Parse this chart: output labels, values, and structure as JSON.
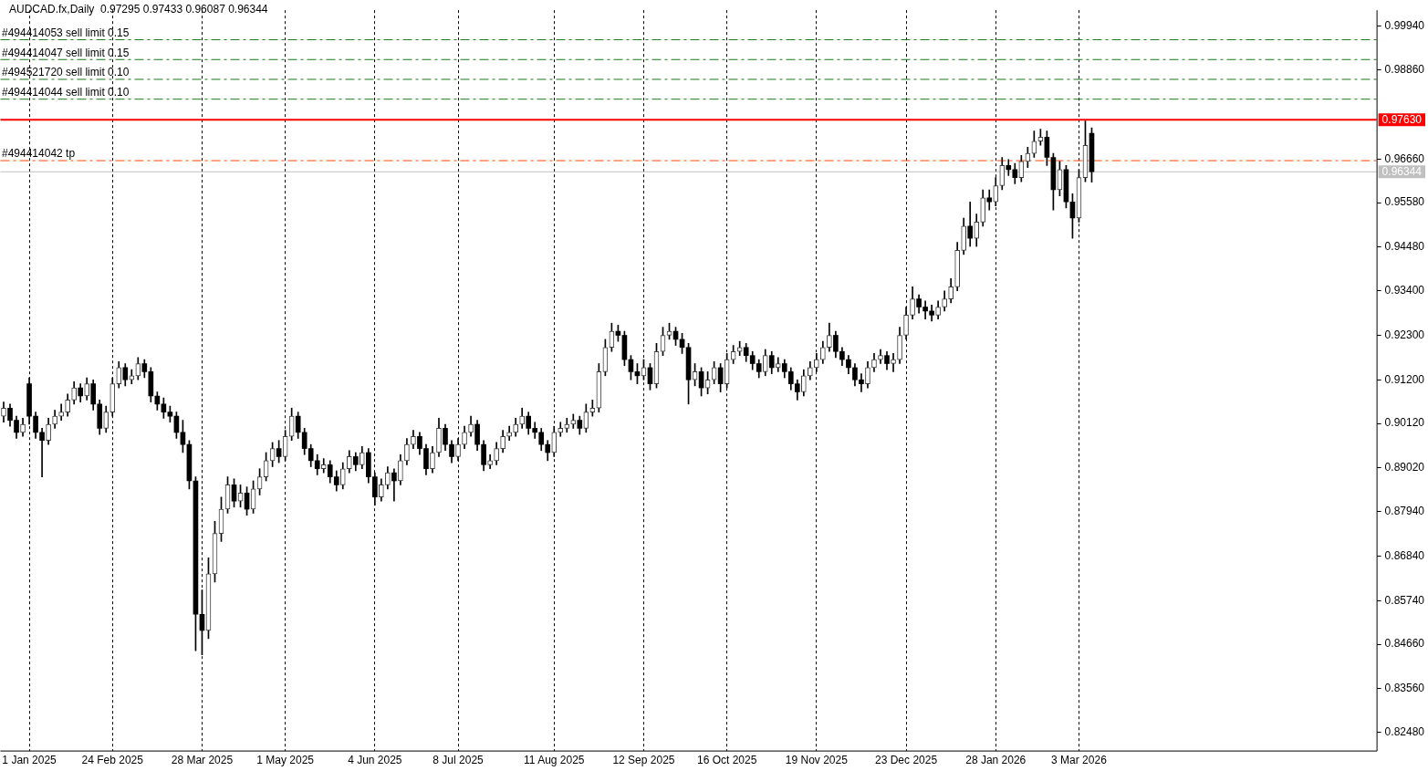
{
  "chart_data": {
    "type": "candlestick",
    "title": "AUDCAD.fx,Daily  0.97295 0.97433 0.96087 0.96344",
    "categories": [
      null,
      null,
      null,
      null,
      "1 Jan 2025",
      null,
      null,
      null,
      null,
      null,
      null,
      null,
      null,
      null,
      null,
      null,
      null,
      "24 Feb 2025",
      null,
      null,
      null,
      null,
      null,
      null,
      null,
      null,
      null,
      null,
      null,
      null,
      null,
      "28 Mar 2025",
      null,
      null,
      null,
      null,
      null,
      null,
      null,
      null,
      null,
      null,
      null,
      null,
      "1 May 2025",
      null,
      null,
      null,
      null,
      null,
      null,
      null,
      null,
      null,
      null,
      null,
      null,
      null,
      "4 Jun 2025",
      null,
      null,
      null,
      null,
      null,
      null,
      null,
      null,
      null,
      null,
      null,
      null,
      "8 Jul 2025",
      null,
      null,
      null,
      null,
      null,
      null,
      null,
      null,
      null,
      null,
      null,
      null,
      null,
      null,
      "11 Aug 2025",
      null,
      null,
      null,
      null,
      null,
      null,
      null,
      null,
      null,
      null,
      null,
      null,
      null,
      "12 Sep 2025",
      null,
      null,
      null,
      null,
      null,
      null,
      null,
      null,
      null,
      null,
      null,
      null,
      "16 Oct 2025",
      null,
      null,
      null,
      null,
      null,
      null,
      null,
      null,
      null,
      null,
      null,
      null,
      null,
      "19 Nov 2025",
      null,
      null,
      null,
      null,
      null,
      null,
      null,
      null,
      null,
      null,
      null,
      null,
      null,
      "23 Dec 2025",
      null,
      null,
      null,
      null,
      null,
      null,
      null,
      null,
      null,
      null,
      null,
      null,
      null,
      "28 Jan 2026",
      null,
      null,
      null,
      null,
      null,
      null,
      null,
      null,
      null,
      null,
      null,
      null,
      "3 Mar 2026",
      null,
      null,
      null,
      null,
      null,
      null,
      null,
      null,
      null,
      null,
      null,
      null,
      null,
      null,
      null,
      null,
      null,
      null,
      null,
      null,
      null,
      null,
      null,
      null,
      null,
      null,
      null,
      null,
      null,
      null,
      null,
      null,
      null,
      null,
      null,
      null,
      null,
      null,
      null,
      null,
      null,
      null,
      null,
      null,
      null,
      null
    ],
    "ohlc": [
      [
        0.903,
        0.9065,
        0.9015,
        0.905
      ],
      [
        0.905,
        0.906,
        0.9005,
        0.902
      ],
      [
        0.902,
        0.903,
        0.8975,
        0.899
      ],
      [
        0.899,
        0.9025,
        0.898,
        0.901
      ],
      [
        0.911,
        0.9125,
        0.901,
        0.903
      ],
      [
        0.903,
        0.904,
        0.8975,
        0.899
      ],
      [
        0.899,
        0.9,
        0.888,
        0.897
      ],
      [
        0.897,
        0.9025,
        0.896,
        0.901
      ],
      [
        0.901,
        0.9045,
        0.9,
        0.903
      ],
      [
        0.903,
        0.906,
        0.902,
        0.904
      ],
      [
        0.904,
        0.9085,
        0.903,
        0.907
      ],
      [
        0.907,
        0.9115,
        0.906,
        0.91
      ],
      [
        0.91,
        0.911,
        0.9065,
        0.908
      ],
      [
        0.908,
        0.9125,
        0.907,
        0.911
      ],
      [
        0.911,
        0.912,
        0.9045,
        0.906
      ],
      [
        0.906,
        0.907,
        0.8985,
        0.9
      ],
      [
        0.9,
        0.9055,
        0.899,
        0.904
      ],
      [
        0.904,
        0.9125,
        0.903,
        0.911
      ],
      [
        0.911,
        0.9165,
        0.91,
        0.915
      ],
      [
        0.915,
        0.916,
        0.9105,
        0.912
      ],
      [
        0.912,
        0.9145,
        0.911,
        0.913
      ],
      [
        0.913,
        0.9175,
        0.912,
        0.916
      ],
      [
        0.916,
        0.917,
        0.9125,
        0.914
      ],
      [
        0.914,
        0.915,
        0.9065,
        0.908
      ],
      [
        0.908,
        0.909,
        0.9045,
        0.906
      ],
      [
        0.906,
        0.9075,
        0.9025,
        0.904
      ],
      [
        0.904,
        0.9055,
        0.9015,
        0.903
      ],
      [
        0.903,
        0.904,
        0.8975,
        0.899
      ],
      [
        0.899,
        0.902,
        0.894,
        0.896
      ],
      [
        0.896,
        0.897,
        0.885,
        0.887
      ],
      [
        0.887,
        0.888,
        0.845,
        0.854
      ],
      [
        0.854,
        0.86,
        0.844,
        0.85
      ],
      [
        0.85,
        0.868,
        0.848,
        0.864
      ],
      [
        0.864,
        0.877,
        0.862,
        0.874
      ],
      [
        0.874,
        0.883,
        0.872,
        0.88
      ],
      [
        0.88,
        0.888,
        0.879,
        0.886
      ],
      [
        0.886,
        0.8875,
        0.8805,
        0.882
      ],
      [
        0.882,
        0.886,
        0.8805,
        0.884
      ],
      [
        0.884,
        0.8855,
        0.8785,
        0.88
      ],
      [
        0.88,
        0.887,
        0.879,
        0.885
      ],
      [
        0.885,
        0.89,
        0.8835,
        0.888
      ],
      [
        0.888,
        0.894,
        0.887,
        0.892
      ],
      [
        0.892,
        0.8965,
        0.8905,
        0.895
      ],
      [
        0.895,
        0.897,
        0.8915,
        0.893
      ],
      [
        0.893,
        0.8995,
        0.892,
        0.898
      ],
      [
        0.898,
        0.905,
        0.897,
        0.903
      ],
      [
        0.903,
        0.904,
        0.8975,
        0.899
      ],
      [
        0.899,
        0.9,
        0.8935,
        0.895
      ],
      [
        0.895,
        0.896,
        0.8905,
        0.892
      ],
      [
        0.892,
        0.8935,
        0.8885,
        0.89
      ],
      [
        0.89,
        0.8925,
        0.889,
        0.891
      ],
      [
        0.891,
        0.892,
        0.8865,
        0.888
      ],
      [
        0.888,
        0.8895,
        0.8845,
        0.886
      ],
      [
        0.886,
        0.8915,
        0.885,
        0.89
      ],
      [
        0.89,
        0.8945,
        0.889,
        0.893
      ],
      [
        0.893,
        0.894,
        0.8895,
        0.891
      ],
      [
        0.891,
        0.8955,
        0.89,
        0.894
      ],
      [
        0.894,
        0.895,
        0.8865,
        0.888
      ],
      [
        0.888,
        0.889,
        0.881,
        0.883
      ],
      [
        0.883,
        0.8875,
        0.882,
        0.886
      ],
      [
        0.886,
        0.8905,
        0.885,
        0.889
      ],
      [
        0.889,
        0.89,
        0.882,
        0.887
      ],
      [
        0.887,
        0.8935,
        0.886,
        0.892
      ],
      [
        0.892,
        0.8975,
        0.891,
        0.896
      ],
      [
        0.896,
        0.8995,
        0.895,
        0.898
      ],
      [
        0.898,
        0.899,
        0.8935,
        0.895
      ],
      [
        0.895,
        0.896,
        0.8885,
        0.89
      ],
      [
        0.89,
        0.8955,
        0.889,
        0.894
      ],
      [
        0.894,
        0.9025,
        0.893,
        0.9
      ],
      [
        0.9,
        0.901,
        0.8945,
        0.896
      ],
      [
        0.896,
        0.897,
        0.8915,
        0.893
      ],
      [
        0.893,
        0.8975,
        0.892,
        0.896
      ],
      [
        0.896,
        0.9005,
        0.895,
        0.899
      ],
      [
        0.899,
        0.903,
        0.898,
        0.901
      ],
      [
        0.901,
        0.902,
        0.8945,
        0.896
      ],
      [
        0.896,
        0.897,
        0.8895,
        0.891
      ],
      [
        0.891,
        0.8935,
        0.89,
        0.892
      ],
      [
        0.892,
        0.8965,
        0.891,
        0.895
      ],
      [
        0.895,
        0.8995,
        0.894,
        0.898
      ],
      [
        0.898,
        0.9005,
        0.897,
        0.899
      ],
      [
        0.899,
        0.9025,
        0.898,
        0.901
      ],
      [
        0.901,
        0.905,
        0.9,
        0.903
      ],
      [
        0.903,
        0.904,
        0.8985,
        0.9
      ],
      [
        0.9,
        0.9015,
        0.8975,
        0.899
      ],
      [
        0.899,
        0.9,
        0.8945,
        0.896
      ],
      [
        0.896,
        0.897,
        0.892,
        0.894
      ],
      [
        0.894,
        0.9005,
        0.893,
        0.899
      ],
      [
        0.899,
        0.9015,
        0.898,
        0.9
      ],
      [
        0.9,
        0.9025,
        0.899,
        0.901
      ],
      [
        0.901,
        0.9035,
        0.9,
        0.902
      ],
      [
        0.902,
        0.903,
        0.8985,
        0.9
      ],
      [
        0.9,
        0.906,
        0.899,
        0.904
      ],
      [
        0.904,
        0.907,
        0.903,
        0.905
      ],
      [
        0.905,
        0.916,
        0.904,
        0.914
      ],
      [
        0.914,
        0.922,
        0.913,
        0.92
      ],
      [
        0.92,
        0.926,
        0.919,
        0.924
      ],
      [
        0.924,
        0.9255,
        0.9215,
        0.923
      ],
      [
        0.923,
        0.924,
        0.9155,
        0.917
      ],
      [
        0.917,
        0.918,
        0.912,
        0.914
      ],
      [
        0.914,
        0.916,
        0.911,
        0.913
      ],
      [
        0.913,
        0.917,
        0.912,
        0.915
      ],
      [
        0.915,
        0.916,
        0.9095,
        0.911
      ],
      [
        0.911,
        0.921,
        0.91,
        0.919
      ],
      [
        0.919,
        0.925,
        0.918,
        0.923
      ],
      [
        0.923,
        0.926,
        0.922,
        0.924
      ],
      [
        0.924,
        0.925,
        0.9205,
        0.922
      ],
      [
        0.922,
        0.9235,
        0.9185,
        0.92
      ],
      [
        0.92,
        0.921,
        0.906,
        0.912
      ],
      [
        0.912,
        0.916,
        0.9105,
        0.914
      ],
      [
        0.914,
        0.915,
        0.908,
        0.91
      ],
      [
        0.91,
        0.914,
        0.9085,
        0.912
      ],
      [
        0.912,
        0.9165,
        0.911,
        0.915
      ],
      [
        0.915,
        0.916,
        0.909,
        0.911
      ],
      [
        0.911,
        0.9185,
        0.91,
        0.917
      ],
      [
        0.917,
        0.9205,
        0.916,
        0.919
      ],
      [
        0.919,
        0.9215,
        0.918,
        0.92
      ],
      [
        0.92,
        0.921,
        0.9165,
        0.918
      ],
      [
        0.918,
        0.919,
        0.9145,
        0.916
      ],
      [
        0.916,
        0.917,
        0.9125,
        0.914
      ],
      [
        0.914,
        0.9195,
        0.913,
        0.918
      ],
      [
        0.918,
        0.919,
        0.9135,
        0.915
      ],
      [
        0.915,
        0.9175,
        0.914,
        0.916
      ],
      [
        0.916,
        0.917,
        0.9125,
        0.914
      ],
      [
        0.914,
        0.915,
        0.9095,
        0.911
      ],
      [
        0.911,
        0.912,
        0.907,
        0.909
      ],
      [
        0.909,
        0.9145,
        0.908,
        0.913
      ],
      [
        0.913,
        0.9165,
        0.912,
        0.915
      ],
      [
        0.915,
        0.9185,
        0.914,
        0.917
      ],
      [
        0.917,
        0.9215,
        0.916,
        0.92
      ],
      [
        0.92,
        0.926,
        0.919,
        0.923
      ],
      [
        0.923,
        0.924,
        0.9175,
        0.919
      ],
      [
        0.919,
        0.92,
        0.9155,
        0.917
      ],
      [
        0.917,
        0.918,
        0.9135,
        0.915
      ],
      [
        0.915,
        0.916,
        0.9105,
        0.912
      ],
      [
        0.912,
        0.9135,
        0.909,
        0.911
      ],
      [
        0.911,
        0.9165,
        0.91,
        0.915
      ],
      [
        0.915,
        0.9185,
        0.914,
        0.917
      ],
      [
        0.917,
        0.9195,
        0.916,
        0.918
      ],
      [
        0.918,
        0.919,
        0.9145,
        0.916
      ],
      [
        0.916,
        0.9185,
        0.914,
        0.917
      ],
      [
        0.917,
        0.925,
        0.916,
        0.923
      ],
      [
        0.923,
        0.93,
        0.922,
        0.928
      ],
      [
        0.928,
        0.935,
        0.927,
        0.932
      ],
      [
        0.932,
        0.933,
        0.9285,
        0.93
      ],
      [
        0.93,
        0.9315,
        0.927,
        0.929
      ],
      [
        0.929,
        0.9305,
        0.9265,
        0.928
      ],
      [
        0.928,
        0.9315,
        0.927,
        0.93
      ],
      [
        0.93,
        0.934,
        0.929,
        0.932
      ],
      [
        0.932,
        0.937,
        0.931,
        0.935
      ],
      [
        0.935,
        0.946,
        0.934,
        0.944
      ],
      [
        0.944,
        0.952,
        0.943,
        0.95
      ],
      [
        0.95,
        0.956,
        0.945,
        0.947
      ],
      [
        0.947,
        0.953,
        0.945,
        0.951
      ],
      [
        0.951,
        0.959,
        0.95,
        0.957
      ],
      [
        0.957,
        0.959,
        0.954,
        0.956
      ],
      [
        0.956,
        0.962,
        0.955,
        0.96
      ],
      [
        0.96,
        0.967,
        0.959,
        0.965
      ],
      [
        0.965,
        0.9665,
        0.9625,
        0.964
      ],
      [
        0.964,
        0.9655,
        0.9605,
        0.962
      ],
      [
        0.962,
        0.9675,
        0.961,
        0.966
      ],
      [
        0.966,
        0.9695,
        0.9645,
        0.968
      ],
      [
        0.968,
        0.9735,
        0.967,
        0.971
      ],
      [
        0.971,
        0.974,
        0.97,
        0.972
      ],
      [
        0.972,
        0.9735,
        0.965,
        0.967
      ],
      [
        0.967,
        0.968,
        0.954,
        0.959
      ],
      [
        0.959,
        0.966,
        0.9575,
        0.964
      ],
      [
        0.964,
        0.965,
        0.9545,
        0.956
      ],
      [
        0.956,
        0.958,
        0.947,
        0.952
      ],
      [
        0.952,
        0.964,
        0.951,
        0.962
      ],
      [
        0.962,
        0.976,
        0.961,
        0.97
      ],
      [
        0.97295,
        0.97433,
        0.96087,
        0.96344
      ],
      null,
      null,
      null,
      null,
      null,
      null,
      null,
      null,
      null,
      null,
      null,
      null,
      null,
      null,
      null,
      null,
      null,
      null,
      null,
      null,
      null,
      null,
      null,
      null,
      null,
      null,
      null,
      null,
      null,
      null,
      null,
      null,
      null,
      null,
      null,
      null,
      null,
      null,
      null,
      null,
      null,
      null,
      null,
      null
    ],
    "ylim": [
      0.8203,
      1.0034
    ],
    "yticks": [
      {
        "value": 0.8248,
        "label": "0.82480"
      },
      {
        "value": 0.8356,
        "label": "0.83560"
      },
      {
        "value": 0.8466,
        "label": "0.84660"
      },
      {
        "value": 0.8574,
        "label": "0.85740"
      },
      {
        "value": 0.8684,
        "label": "0.86840"
      },
      {
        "value": 0.8794,
        "label": "0.87940"
      },
      {
        "value": 0.8902,
        "label": "0.89020"
      },
      {
        "value": 0.9012,
        "label": "0.90120"
      },
      {
        "value": 0.912,
        "label": "0.91200"
      },
      {
        "value": 0.923,
        "label": "0.92300"
      },
      {
        "value": 0.934,
        "label": "0.93400"
      },
      {
        "value": 0.9448,
        "label": "0.94480"
      },
      {
        "value": 0.9558,
        "label": "0.95580"
      },
      {
        "value": 0.9666,
        "label": "0.96660"
      },
      {
        "value": 0.9886,
        "label": "0.98860"
      },
      {
        "value": 0.9994,
        "label": "0.99940"
      }
    ],
    "ref_lines": [
      {
        "axis": "y",
        "value": 0.9961,
        "label": "#494414053 sell limit 0.15",
        "color": "#1a7a1a",
        "line_style": "dashed"
      },
      {
        "axis": "y",
        "value": 0.9912,
        "label": "#494414047 sell limit 0.15",
        "color": "#1a7a1a",
        "line_style": "dashed"
      },
      {
        "axis": "y",
        "value": 0.9863,
        "label": "#494521720 sell limit 0.10",
        "color": "#1a7a1a",
        "line_style": "dashed"
      },
      {
        "axis": "y",
        "value": 0.9814,
        "label": "#494414044 sell limit 0.10",
        "color": "#1a7a1a",
        "line_style": "dashed"
      },
      {
        "axis": "y",
        "value": 0.9763,
        "label": "0.97630",
        "color": "#ff0000",
        "line_style": "solid"
      },
      {
        "axis": "y",
        "value": 0.9662,
        "label": "#494414042 tp",
        "color": "#ff4500",
        "line_style": "dashed"
      },
      {
        "axis": "y",
        "value": 0.96344,
        "label": "0.96344",
        "color": "#c0c0c0",
        "line_style": "solid"
      }
    ],
    "grid": "x",
    "legend": false
  }
}
